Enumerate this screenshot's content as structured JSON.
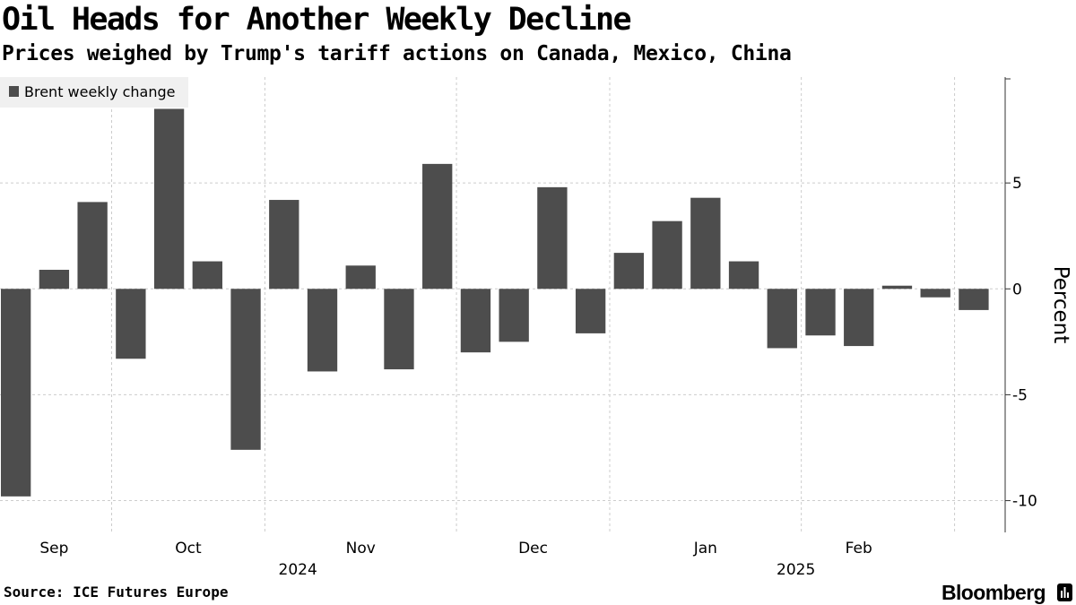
{
  "header": {
    "title": "Oil Heads for Another Weekly Decline",
    "subtitle": "Prices weighed by Trump's tariff actions on Canada, Mexico, China"
  },
  "footer": {
    "source": "Source: ICE Futures Europe",
    "brand": "Bloomberg"
  },
  "colors": {
    "bar": "#4d4d4d",
    "legend_bg": "#f0f0f0",
    "grid": "#cccccc",
    "axis": "#333333"
  },
  "icons": {
    "brand": "bloomberg-bar-chart-icon"
  },
  "chart_data": {
    "type": "bar",
    "title": "Oil Heads for Another Weekly Decline",
    "subtitle": "Prices weighed by Trump's tariff actions on Canada, Mexico, China",
    "xlabel": "",
    "ylabel": "Percent",
    "ylim": [
      -11.5,
      10
    ],
    "yticks": [
      -10,
      -5,
      0,
      5
    ],
    "ytick_labels": [
      "-10",
      "-5",
      "0",
      "5"
    ],
    "grid": true,
    "legend": {
      "position": "top-left",
      "entries": [
        "Brent weekly change"
      ]
    },
    "x_axis": {
      "month_labels": [
        "Sep",
        "Oct",
        "Nov",
        "Dec",
        "Jan",
        "Feb"
      ],
      "month_label_week_positions": [
        1.5,
        5,
        9.5,
        14,
        18.5,
        22.5
      ],
      "month_boundary_week_positions": [
        3,
        7,
        12,
        16,
        21,
        25
      ],
      "year_labels": [
        "2024",
        "2025"
      ],
      "year_label_week_positions": [
        7.75,
        20.75
      ]
    },
    "series": [
      {
        "name": "Brent weekly change",
        "values": [
          -9.8,
          0.9,
          4.1,
          -3.3,
          8.5,
          1.3,
          -7.6,
          4.2,
          -3.9,
          1.1,
          -3.8,
          5.9,
          -3.0,
          -2.5,
          4.8,
          -2.1,
          1.7,
          3.2,
          4.3,
          1.3,
          -2.8,
          -2.2,
          -2.7,
          0.15,
          -0.4,
          -1.0
        ]
      }
    ]
  }
}
